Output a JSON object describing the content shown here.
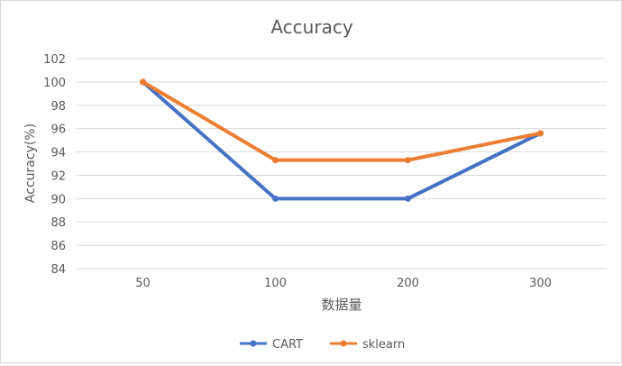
{
  "chart_data": {
    "type": "line",
    "title": "Accuracy",
    "xlabel": "数据量",
    "ylabel": "Accuracy(%)",
    "categories": [
      "50",
      "100",
      "200",
      "300"
    ],
    "ylim": [
      84,
      102
    ],
    "yticks": [
      84,
      86,
      88,
      90,
      92,
      94,
      96,
      98,
      100,
      102
    ],
    "grid": true,
    "legend_position": "bottom",
    "series": [
      {
        "name": "CART",
        "values": [
          100,
          90,
          90,
          95.6
        ],
        "color": "#4472C4"
      },
      {
        "name": "sklearn",
        "values": [
          100,
          93.3,
          93.3,
          95.6
        ],
        "color": "#ED7D31"
      }
    ]
  }
}
